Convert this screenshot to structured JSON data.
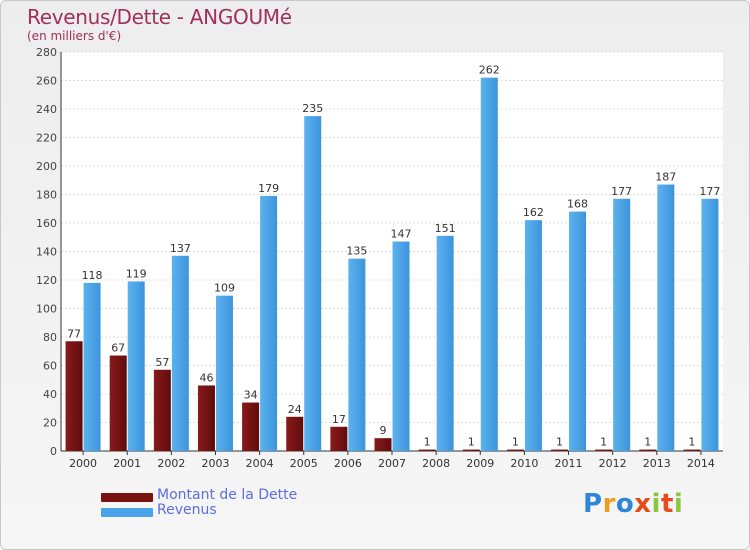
{
  "header": {
    "title": "Revenus/Dette - ANGOUMé",
    "subtitle": "(en milliers d'€)"
  },
  "chart_data": {
    "type": "bar",
    "title": "Revenus/Dette - ANGOUMé",
    "ylabel": "(en milliers d'€)",
    "xlabel": "",
    "ylim": [
      0,
      280
    ],
    "yticks": [
      0,
      20,
      40,
      60,
      80,
      100,
      120,
      140,
      160,
      180,
      200,
      220,
      240,
      260,
      280
    ],
    "grid": true,
    "categories": [
      "2000",
      "2001",
      "2002",
      "2003",
      "2004",
      "2005",
      "2006",
      "2007",
      "2008",
      "2009",
      "2010",
      "2011",
      "2012",
      "2013",
      "2014"
    ],
    "series": [
      {
        "name": "Montant de la Dette",
        "color": "#7a1212",
        "values": [
          77,
          67,
          57,
          46,
          34,
          24,
          17,
          9,
          1,
          1,
          1,
          1,
          1,
          1,
          1
        ]
      },
      {
        "name": "Revenus",
        "color": "#4aa3e6",
        "values": [
          118,
          119,
          137,
          109,
          179,
          235,
          135,
          147,
          151,
          262,
          162,
          168,
          177,
          187,
          177
        ]
      }
    ],
    "legend_position": "bottom-left"
  },
  "legend": {
    "items": [
      {
        "label": "Montant de la Dette",
        "color": "#7a1212"
      },
      {
        "label": "Revenus",
        "color": "#4aa3e6"
      }
    ]
  },
  "logo": {
    "letters": [
      "P",
      "r",
      "o",
      "x",
      "i",
      "t",
      "i"
    ],
    "colors": [
      "#2f86d8",
      "#e8a020",
      "#2f86d8",
      "#e84a1a",
      "#8cc63f",
      "#e84a1a",
      "#8cc63f"
    ]
  }
}
